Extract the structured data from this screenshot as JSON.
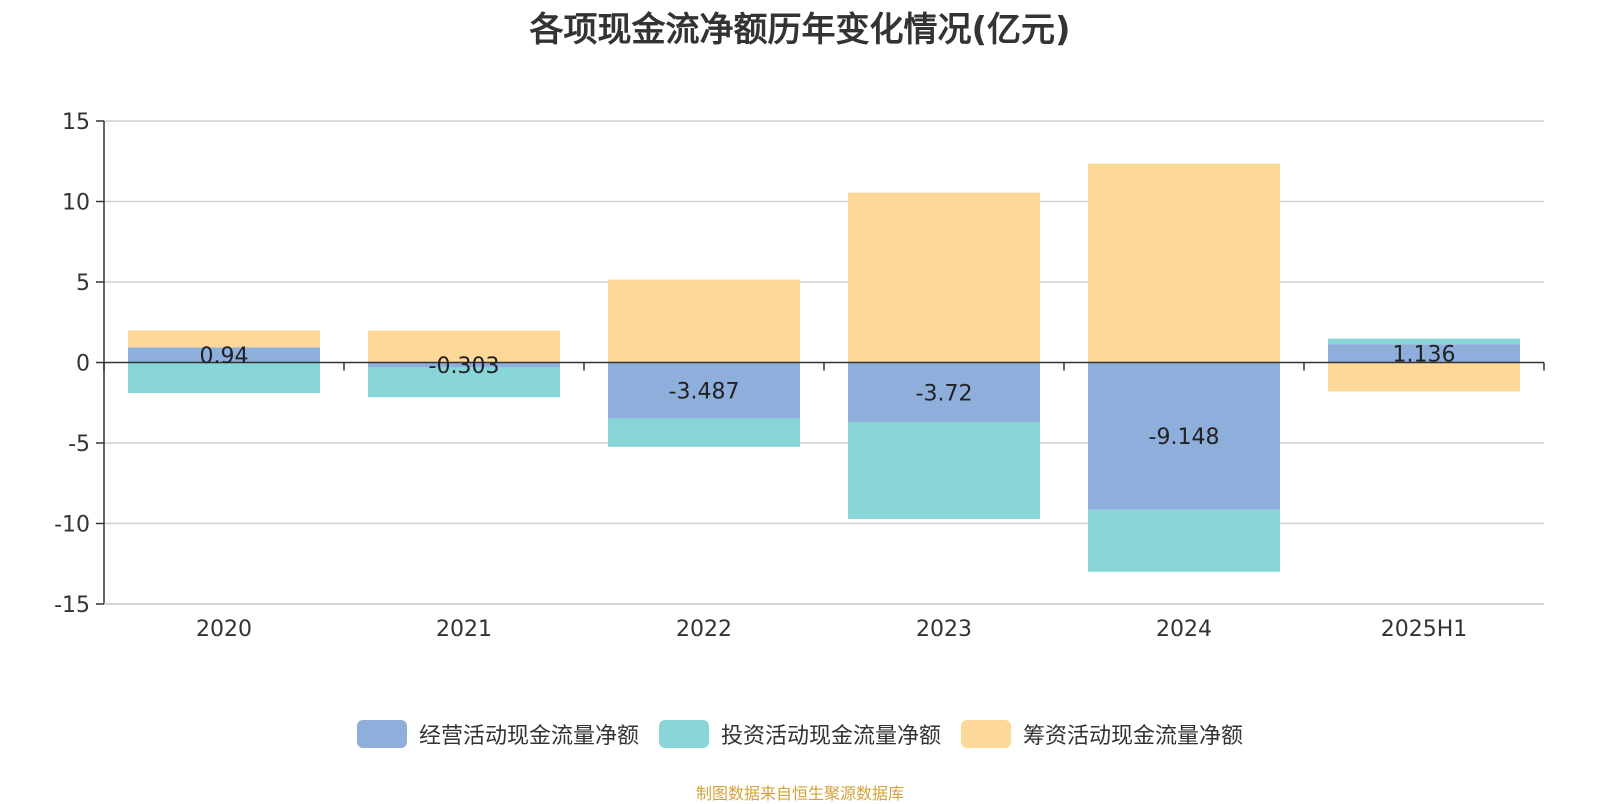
{
  "chart_data": {
    "type": "bar",
    "stacked": true,
    "title": "各项现金流净额历年变化情况(亿元)",
    "xlabel": "",
    "ylabel": "",
    "ylim": [
      -15,
      15
    ],
    "yticks": [
      15,
      10,
      5,
      0,
      -5,
      -10,
      -15
    ],
    "categories": [
      "2020",
      "2021",
      "2022",
      "2023",
      "2024",
      "2025H1"
    ],
    "series": [
      {
        "name": "经营活动现金流量净额",
        "color": "#8eaedb",
        "values": [
          0.94,
          -0.303,
          -3.487,
          -3.72,
          -9.148,
          1.136
        ],
        "labels": [
          "0.94",
          "-0.303",
          "-3.487",
          "-3.72",
          "-9.148",
          "1.136"
        ]
      },
      {
        "name": "投资活动现金流量净额",
        "color": "#88d6d8",
        "values": [
          -1.9,
          -1.85,
          -1.75,
          -6.0,
          -3.85,
          0.35
        ]
      },
      {
        "name": "筹资活动现金流量净额",
        "color": "#fdd898",
        "values": [
          1.05,
          1.98,
          5.15,
          10.55,
          12.35,
          -1.8
        ]
      }
    ],
    "legend_position": "bottom-center",
    "grid": true
  },
  "source_note": "制图数据来自恒生聚源数据库"
}
